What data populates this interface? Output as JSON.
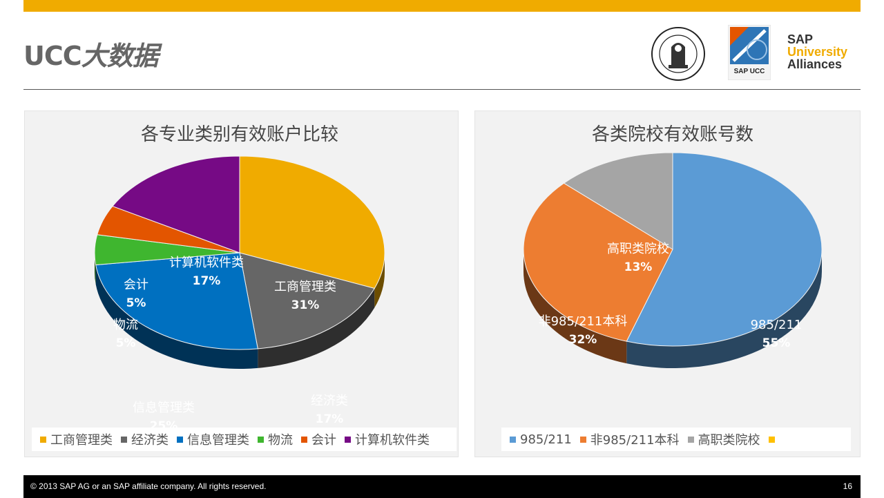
{
  "header": {
    "title_latin": "UCC",
    "title_cn": "大数据",
    "accent": "#F0AB00"
  },
  "logos": {
    "seal_icon": "university-seal-icon",
    "ucc_logo_text": "SAP UCC",
    "sap_ua": {
      "line1": "SAP",
      "line2": "University",
      "line3": "Alliances"
    }
  },
  "footer": {
    "copyright": "© 2013 SAP AG or an SAP affiliate company. All rights reserved.",
    "page": "16"
  },
  "chart_data": [
    {
      "type": "pie",
      "title": "各专业类别有效账户比较",
      "slices": [
        {
          "label": "工商管理类",
          "value": 31,
          "value_label": "31%",
          "color": "#F0AB00"
        },
        {
          "label": "经济类",
          "value": 17,
          "value_label": "17%",
          "color": "#666666"
        },
        {
          "label": "信息管理类",
          "value": 25,
          "value_label": "25%",
          "color": "#0070C0"
        },
        {
          "label": "物流",
          "value": 5,
          "value_label": "5%",
          "color": "#3FB62F"
        },
        {
          "label": "会计",
          "value": 5,
          "value_label": "5%",
          "color": "#E35500"
        },
        {
          "label": "计算机软件类",
          "value": 17,
          "value_label": "17%",
          "color": "#760A85"
        }
      ],
      "legend": [
        "工商管理类",
        "经济类",
        "信息管理类",
        "物流",
        "会计",
        "计算机软件类"
      ],
      "legend_position": "bottom"
    },
    {
      "type": "pie",
      "title": "各类院校有效账号数",
      "slices": [
        {
          "label": "985/211",
          "value": 55,
          "value_label": "55%",
          "color": "#5B9BD5"
        },
        {
          "label": "非985/211本科",
          "value": 32,
          "value_label": "32%",
          "color": "#ED7D31"
        },
        {
          "label": "高职类院校",
          "value": 13,
          "value_label": "13%",
          "color": "#A5A5A5"
        }
      ],
      "legend": [
        "985/211",
        "非985/211本科",
        "高职类院校",
        ""
      ],
      "legend_extra_color": "#FFC000",
      "legend_position": "bottom"
    }
  ]
}
